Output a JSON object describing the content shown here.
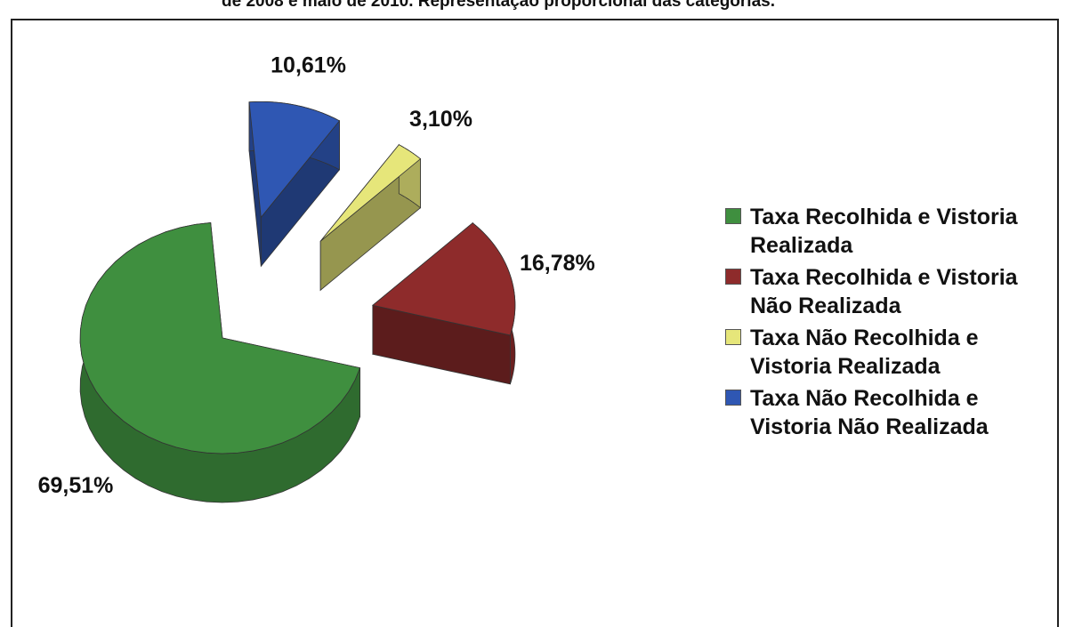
{
  "chart_data": {
    "type": "pie3d",
    "title": "de 2008 e maio de 2010. Representação proporcional das categorias.",
    "categories": [
      "Taxa Recolhida e Vistoria Realizada",
      "Taxa Recolhida e Vistoria Não Realizada",
      "Taxa Não Recolhida e Vistoria Realizada",
      "Taxa Não Recolhida e Vistoria Não Realizada"
    ],
    "values": [
      69.51,
      16.78,
      3.1,
      10.61
    ],
    "value_labels": [
      "69,51%",
      "16,78%",
      "3,10%",
      "10,61%"
    ],
    "colors": [
      "#3f8f3f",
      "#8e2b2b",
      "#e6e67a",
      "#2f57b3"
    ],
    "legend": "right"
  }
}
